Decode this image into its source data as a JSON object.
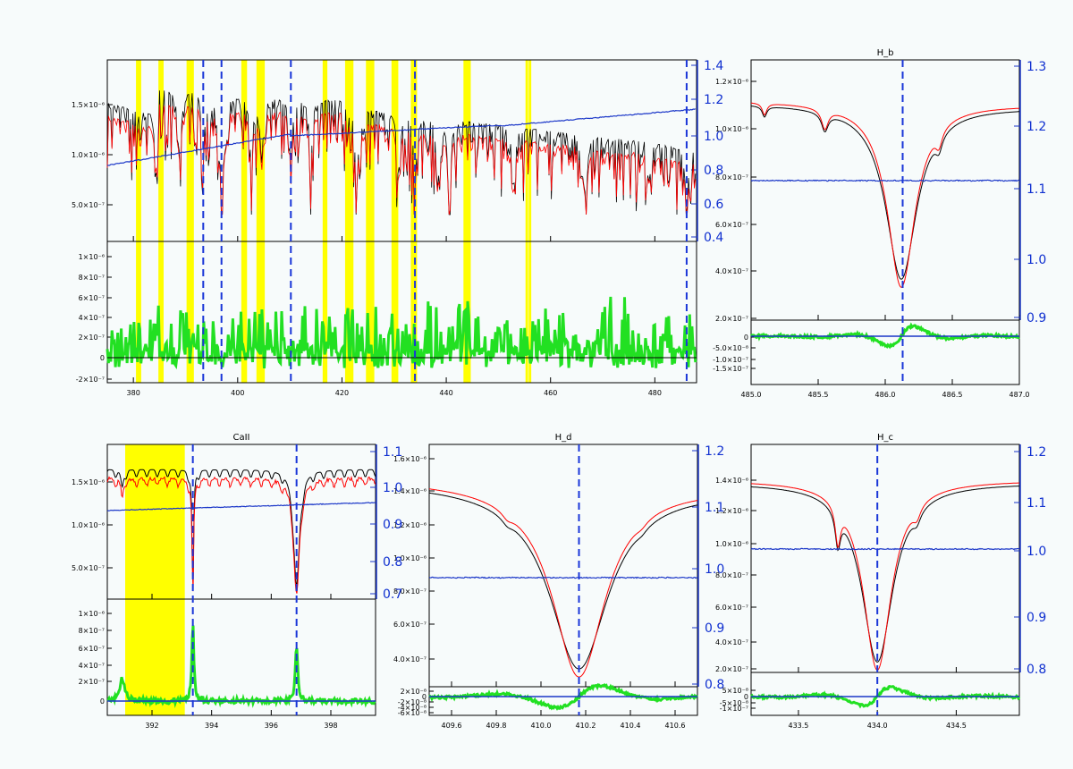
{
  "colors": {
    "observed": "#000000",
    "model": "#ff0000",
    "ratio": "#1a36c8",
    "residual": "#22e022",
    "mask": "#ffff00",
    "line_marker": "#1a36d8"
  },
  "chart_data": [
    {
      "type": "line",
      "panel": "full-spectrum",
      "title": "",
      "x_ticks": [
        "380",
        "400",
        "420",
        "440",
        "460",
        "480"
      ],
      "xlim": [
        375,
        488
      ],
      "top_left_ticks": [
        "5.0×10⁻⁷",
        "1.0×10⁻⁶",
        "1.5×10⁻⁶"
      ],
      "top_right_ticks": [
        "0.4",
        "0.6",
        "0.8",
        "1.0",
        "1.2",
        "1.4"
      ],
      "bottom_left_ticks": [
        "-2×10⁻⁷",
        "0",
        "2×10⁻⁷",
        "4×10⁻⁷",
        "6×10⁻⁷",
        "8×10⁻⁷",
        "1×10⁻⁶"
      ],
      "line_markers": [
        393.4,
        396.9,
        410.2,
        434.0,
        486.1
      ],
      "masks": [
        [
          380.5,
          381.5
        ],
        [
          384.8,
          385.8
        ],
        [
          390.2,
          391.6
        ],
        [
          400.7,
          401.8
        ],
        [
          403.6,
          405.2
        ],
        [
          416.3,
          417.2
        ],
        [
          420.6,
          422.2
        ],
        [
          424.6,
          426.2
        ],
        [
          429.5,
          430.8
        ],
        [
          433.2,
          434.4
        ],
        [
          443.3,
          444.7
        ],
        [
          455.2,
          455.7
        ],
        [
          455.8,
          456.3
        ]
      ]
    },
    {
      "type": "line",
      "panel": "h-beta",
      "title": "H_b",
      "x_ticks": [
        "485.0",
        "485.5",
        "486.0",
        "486.5",
        "487.0"
      ],
      "xlim": [
        485.0,
        487.0
      ],
      "top_left_ticks": [
        "2.0×10⁻⁷",
        "4.0×10⁻⁷",
        "6.0×10⁻⁷",
        "8.0×10⁻⁷",
        "1.0×10⁻⁶",
        "1.2×10⁻⁶"
      ],
      "top_right_ticks": [
        "0.9",
        "1.0",
        "1.1",
        "1.2",
        "1.3"
      ],
      "bottom_left_ticks": [
        "-1.5×10⁻⁷",
        "-1.0×10⁻⁷",
        "-5.0×10⁻⁸",
        "0"
      ],
      "line_markers": [
        486.13
      ]
    },
    {
      "type": "line",
      "panel": "ca-ii",
      "title": "CaII",
      "x_ticks": [
        "392",
        "394",
        "396",
        "398"
      ],
      "xlim": [
        390.5,
        399.5
      ],
      "top_left_ticks": [
        "5.0×10⁻⁷",
        "1.0×10⁻⁶",
        "1.5×10⁻⁶"
      ],
      "top_right_ticks": [
        "0.7",
        "0.8",
        "0.9",
        "1.0",
        "1.1"
      ],
      "bottom_left_ticks": [
        "0",
        "2×10⁻⁷",
        "4×10⁻⁷",
        "6×10⁻⁷",
        "8×10⁻⁷",
        "1×10⁻⁶"
      ],
      "line_markers": [
        393.37,
        396.85
      ],
      "masks": [
        [
          391.1,
          393.1
        ]
      ]
    },
    {
      "type": "line",
      "panel": "h-delta",
      "title": "H_d",
      "x_ticks": [
        "409.6",
        "409.8",
        "410.0",
        "410.2",
        "410.4",
        "410.6"
      ],
      "xlim": [
        409.5,
        410.7
      ],
      "top_left_ticks": [
        "4.0×10⁻⁷",
        "6.0×10⁻⁷",
        "8.0×10⁻⁷",
        "1.0×10⁻⁶",
        "1.2×10⁻⁶",
        "1.4×10⁻⁶",
        "1.6×10⁻⁶"
      ],
      "top_right_ticks": [
        "0.8",
        "0.9",
        "1.0",
        "1.1",
        "1.2"
      ],
      "bottom_left_ticks": [
        "2×10⁻⁸",
        "0",
        "-2×10⁻⁸",
        "-4×10⁻⁸",
        "-6×10⁻⁸"
      ],
      "line_markers": [
        410.17
      ]
    },
    {
      "type": "line",
      "panel": "h-gamma",
      "title": "H_c",
      "x_ticks": [
        "433.5",
        "434.0",
        "434.5"
      ],
      "xlim": [
        433.2,
        434.9
      ],
      "top_left_ticks": [
        "2.0×10⁻⁷",
        "4.0×10⁻⁷",
        "6.0×10⁻⁷",
        "8.0×10⁻⁷",
        "1.0×10⁻⁶",
        "1.2×10⁻⁶",
        "1.4×10⁻⁶"
      ],
      "top_right_ticks": [
        "0.8",
        "0.9",
        "1.0",
        "1.1",
        "1.2"
      ],
      "bottom_left_ticks": [
        "5×10⁻⁸",
        "0",
        "-5×10⁻⁸",
        "-1×10⁻⁷"
      ],
      "line_markers": [
        434.0
      ]
    }
  ]
}
